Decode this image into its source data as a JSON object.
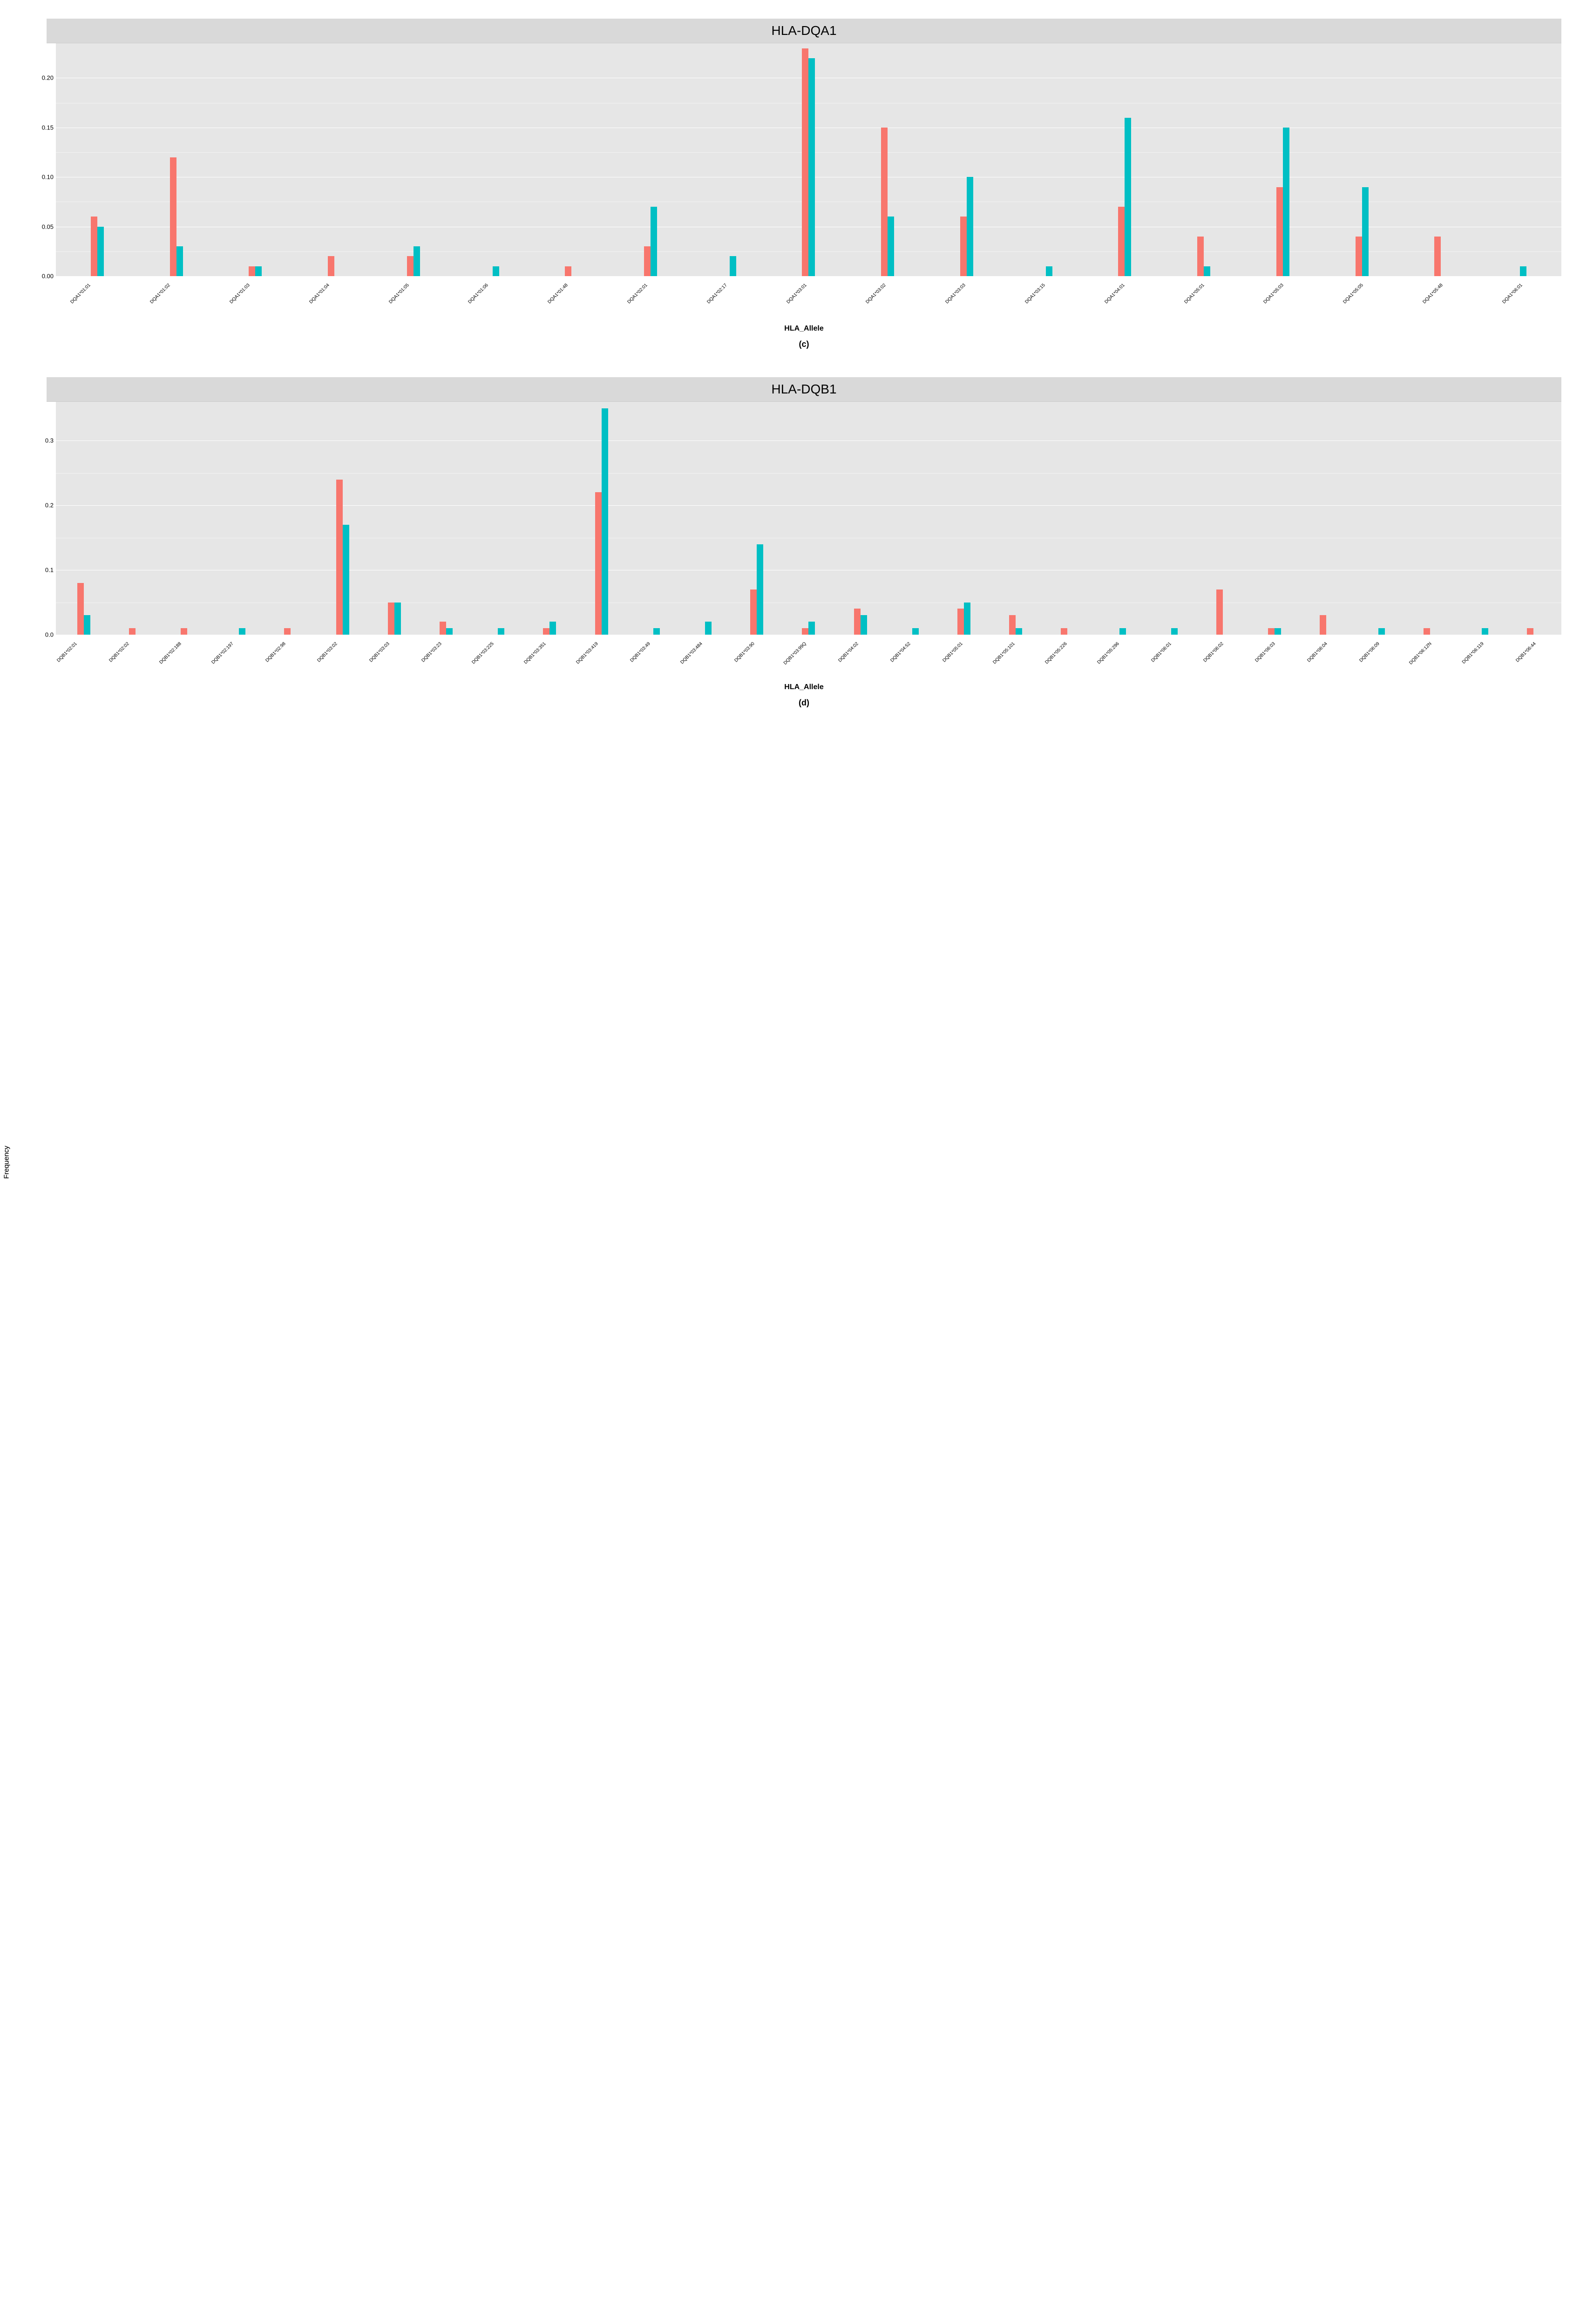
{
  "series_colors": [
    "#f8766d",
    "#00bfc4"
  ],
  "background_color": "#e6e6e6",
  "gridline_color": "#ffffff",
  "strip_background": "#d9d9d9",
  "charts": [
    {
      "id": "dqa1",
      "title": "HLA-DQA1",
      "subfigure": "(c)",
      "x_axis_title": "HLA_Allele",
      "y_axis_title": "Frequency",
      "ylim": [
        0,
        0.235
      ],
      "yticks": [
        0.0,
        0.05,
        0.1,
        0.15,
        0.2
      ],
      "ytick_labels": [
        "0.00",
        "0.05",
        "0.10",
        "0.15",
        "0.20"
      ],
      "categories": [
        "DQA1*01:01",
        "DQA1*01:02",
        "DQA1*01:03",
        "DQA1*01:04",
        "DQA1*01:05",
        "DQA1*01:06",
        "DQA1*01:48",
        "DQA1*02:01",
        "DQA1*02:17",
        "DQA1*03:01",
        "DQA1*03:02",
        "DQA1*03:03",
        "DQA1*03:15",
        "DQA1*04:01",
        "DQA1*05:01",
        "DQA1*05:03",
        "DQA1*05:05",
        "DQA1*05:48",
        "DQA1*06:01"
      ],
      "series1": [
        0.06,
        0.12,
        0.01,
        0.02,
        0.02,
        0,
        0.01,
        0.03,
        0,
        0.23,
        0.15,
        0.06,
        0,
        0.07,
        0.04,
        0.09,
        0.04,
        0.04,
        0
      ],
      "series2": [
        0.05,
        0.03,
        0.01,
        0,
        0.03,
        0.01,
        0,
        0.07,
        0.02,
        0.22,
        0.06,
        0.1,
        0.01,
        0.16,
        0.01,
        0.15,
        0.09,
        0,
        0.01
      ]
    },
    {
      "id": "dqb1",
      "title": "HLA-DQB1",
      "subfigure": "(d)",
      "x_axis_title": "HLA_Allele",
      "y_axis_title": "Frequency",
      "ylim": [
        0,
        0.36
      ],
      "yticks": [
        0.0,
        0.1,
        0.2,
        0.3
      ],
      "ytick_labels": [
        "0.0",
        "0.1",
        "0.2",
        "0.3"
      ],
      "categories": [
        "DQB1*02:01",
        "DQB1*02:02",
        "DQB1*02:188",
        "DQB1*02:197",
        "DQB1*02:98",
        "DQB1*03:02",
        "DQB1*03:03",
        "DQB1*03:23",
        "DQB1*03:225",
        "DQB1*03:351",
        "DQB1*03:419",
        "DQB1*03:49",
        "DQB1*03:484",
        "DQB1*03:90",
        "DQB1*03:99Q",
        "DQB1*04:02",
        "DQB1*04:52",
        "DQB1*05:01",
        "DQB1*05:101",
        "DQB1*05:226",
        "DQB1*05:296",
        "DQB1*06:01",
        "DQB1*06:02",
        "DQB1*06:03",
        "DQB1*06:04",
        "DQB1*06:09",
        "DQB1*06:12N",
        "DQB1*06:119",
        "DQB1*06:44"
      ],
      "series1": [
        0.08,
        0.01,
        0.01,
        0,
        0.01,
        0.24,
        0.05,
        0.02,
        0,
        0.01,
        0.22,
        0,
        0,
        0.07,
        0.01,
        0.04,
        0,
        0.04,
        0.03,
        0.01,
        0,
        0,
        0.07,
        0.01,
        0.03,
        0,
        0.01,
        0,
        0.01
      ],
      "series2": [
        0.03,
        0,
        0,
        0.01,
        0,
        0.17,
        0.05,
        0.01,
        0.01,
        0.02,
        0.35,
        0.01,
        0.02,
        0.14,
        0.02,
        0.03,
        0.01,
        0.05,
        0.01,
        0,
        0.01,
        0.01,
        0,
        0.01,
        0,
        0.01,
        0,
        0.01,
        0
      ]
    }
  ]
}
